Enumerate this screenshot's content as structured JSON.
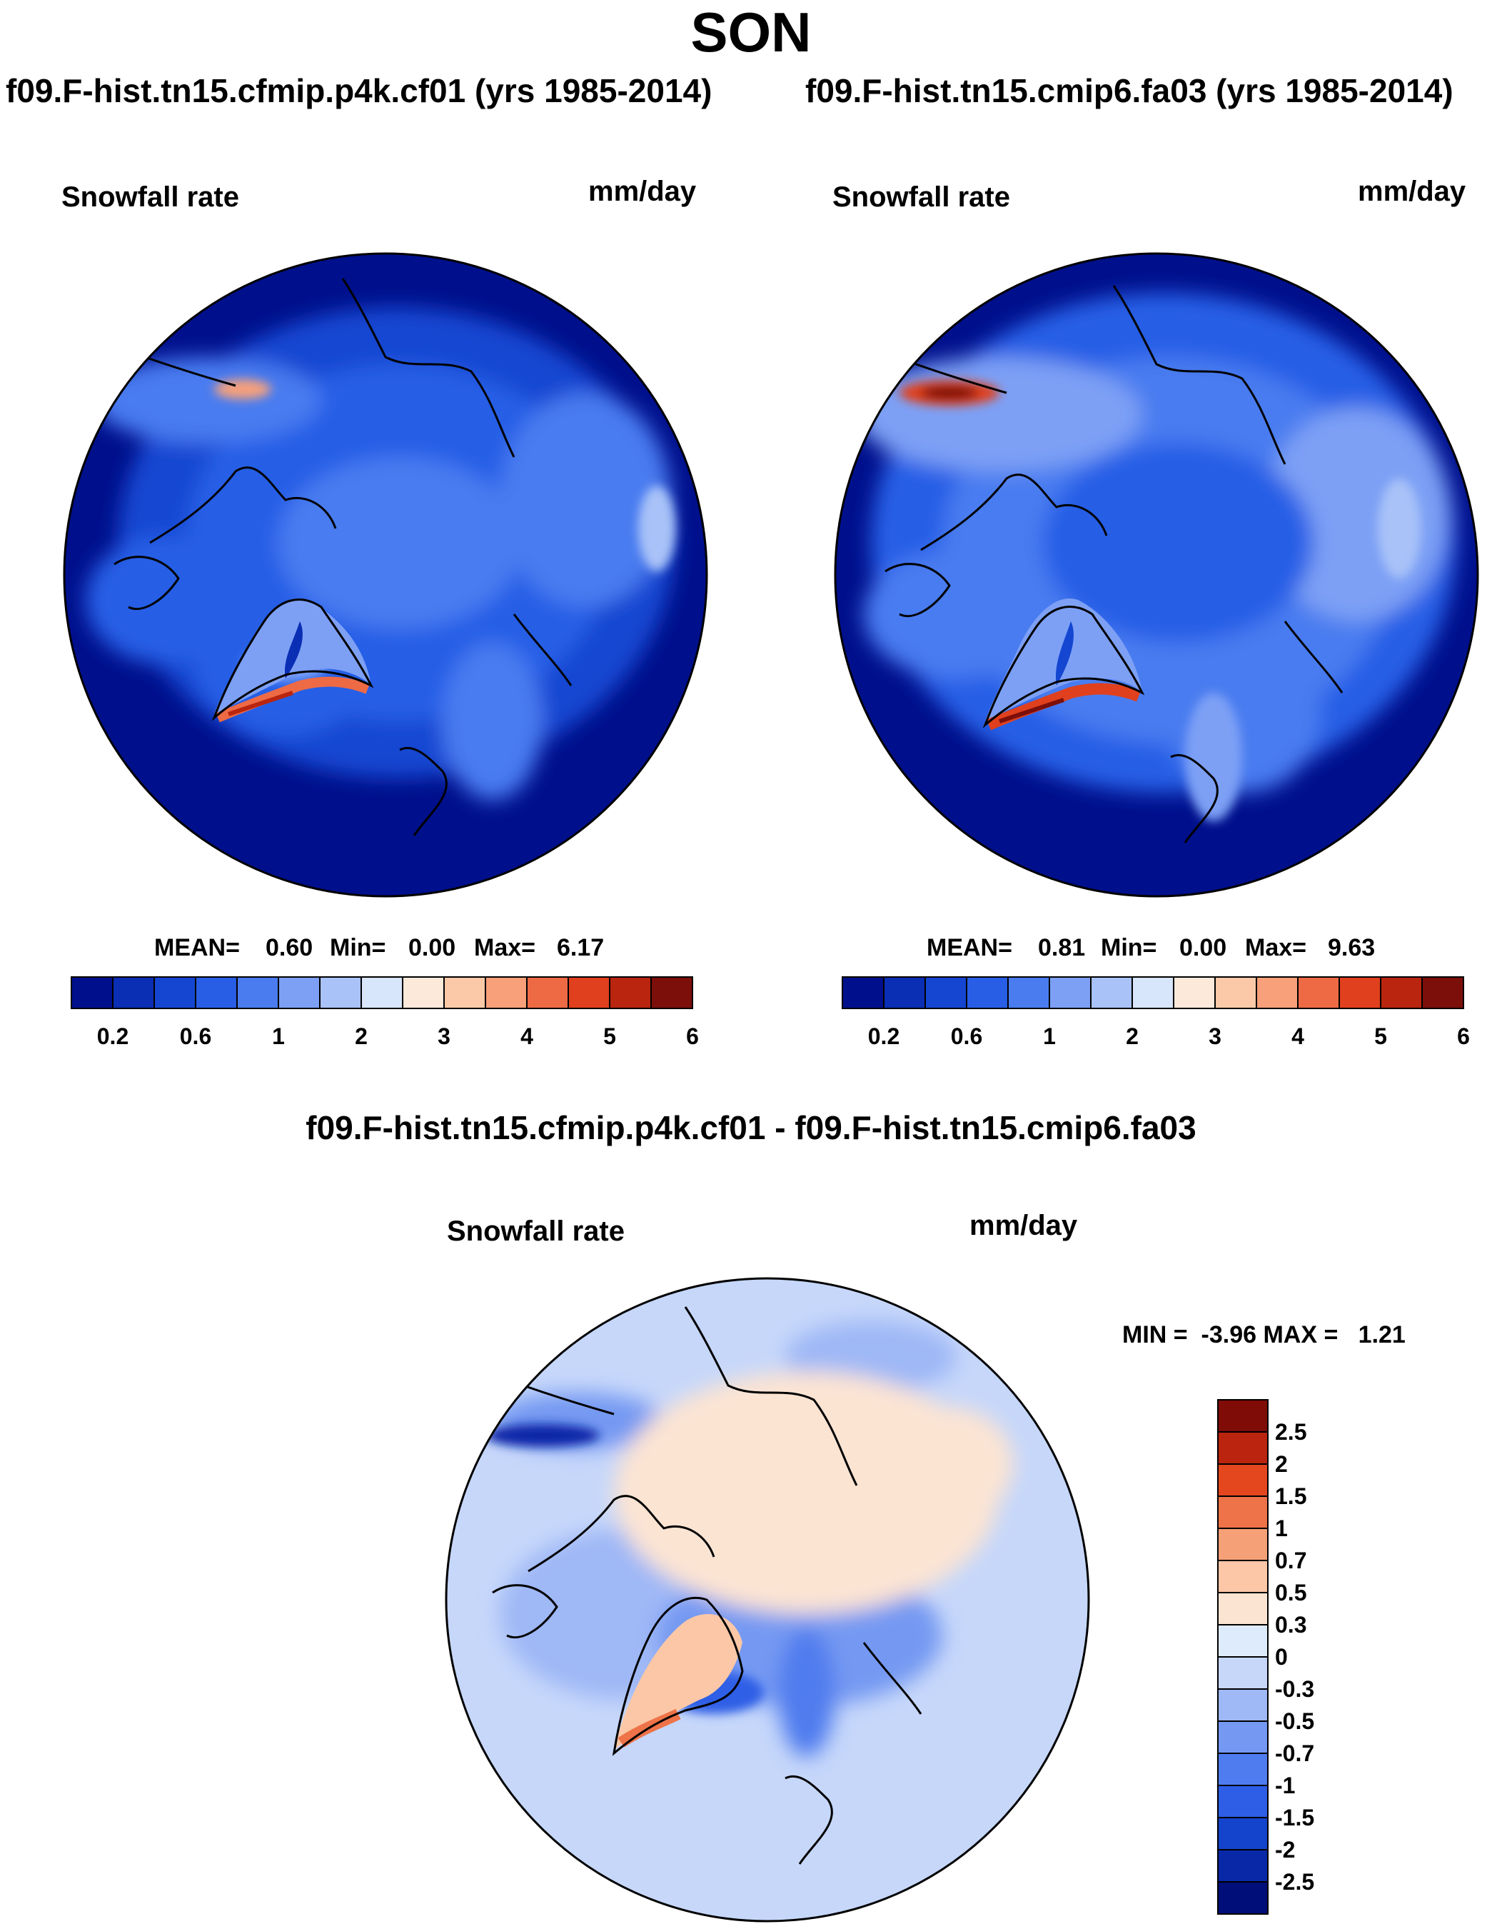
{
  "title": "SON",
  "colors": {
    "panel_scale": [
      "#00108c",
      "#0a2eb4",
      "#1446d2",
      "#285ee6",
      "#4a7cf0",
      "#7da0f5",
      "#a9c2f8",
      "#d8e6fb",
      "#fde9da",
      "#fbc9a8",
      "#f7a07a",
      "#ee6a45",
      "#e0401e",
      "#b9250e",
      "#7c0f0a"
    ],
    "diff_scale": [
      "#000e7a",
      "#0828a8",
      "#1544cc",
      "#2e5ee6",
      "#4f7cee",
      "#7599f2",
      "#9fb8f6",
      "#c6d7fa",
      "#deebfc",
      "#fce4d3",
      "#fbc7a6",
      "#f6a078",
      "#ee7348",
      "#e4461e",
      "#bb240e",
      "#7f0c06"
    ],
    "coastline": "#000000"
  },
  "panels": [
    {
      "title": "f09.F-hist.tn15.cfmip.p4k.cf01 (yrs 1985-2014)",
      "variable": "Snowfall rate",
      "units": "mm/day",
      "stats": {
        "mean_label": "MEAN=",
        "mean": "0.60",
        "min_label": "Min=",
        "min": "0.00",
        "max_label": "Max=",
        "max": "6.17"
      },
      "colorbar_ticks": [
        "0.2",
        "0.6",
        "1",
        "2",
        "3",
        "4",
        "5",
        "6"
      ]
    },
    {
      "title": "f09.F-hist.tn15.cmip6.fa03 (yrs 1985-2014)",
      "variable": "Snowfall rate",
      "units": "mm/day",
      "stats": {
        "mean_label": "MEAN=",
        "mean": "0.81",
        "min_label": "Min=",
        "min": "0.00",
        "max_label": "Max=",
        "max": "9.63"
      },
      "colorbar_ticks": [
        "0.2",
        "0.6",
        "1",
        "2",
        "3",
        "4",
        "5",
        "6"
      ]
    }
  ],
  "difference": {
    "title": "f09.F-hist.tn15.cfmip.p4k.cf01 - f09.F-hist.tn15.cmip6.fa03",
    "variable": "Snowfall rate",
    "units": "mm/day",
    "minmax": "MIN =  -3.96 MAX =   1.21",
    "colorbar_ticks": [
      "2.5",
      "2",
      "1.5",
      "1",
      "0.7",
      "0.5",
      "0.3",
      "0",
      "-0.3",
      "-0.5",
      "-0.7",
      "-1",
      "-1.5",
      "-2",
      "-2.5"
    ]
  },
  "chart_data": [
    {
      "type": "heatmap",
      "projection": "north polar stereographic",
      "title": "f09.F-hist.tn15.cfmip.p4k.cf01 (yrs 1985-2014)",
      "variable": "Snowfall rate",
      "units": "mm/day",
      "mean": 0.6,
      "min": 0.0,
      "max": 6.17,
      "levels": [
        0.2,
        0.4,
        0.6,
        0.8,
        1,
        1.5,
        2,
        2.5,
        3,
        3.5,
        4,
        4.5,
        5,
        5.5,
        6
      ]
    },
    {
      "type": "heatmap",
      "projection": "north polar stereographic",
      "title": "f09.F-hist.tn15.cmip6.fa03 (yrs 1985-2014)",
      "variable": "Snowfall rate",
      "units": "mm/day",
      "mean": 0.81,
      "min": 0.0,
      "max": 9.63,
      "levels": [
        0.2,
        0.4,
        0.6,
        0.8,
        1,
        1.5,
        2,
        2.5,
        3,
        3.5,
        4,
        4.5,
        5,
        5.5,
        6
      ]
    },
    {
      "type": "heatmap",
      "projection": "north polar stereographic",
      "title": "f09.F-hist.tn15.cfmip.p4k.cf01 - f09.F-hist.tn15.cmip6.fa03",
      "variable": "Snowfall rate",
      "units": "mm/day",
      "min": -3.96,
      "max": 1.21,
      "levels": [
        -2.5,
        -2,
        -1.5,
        -1,
        -0.7,
        -0.5,
        -0.3,
        0,
        0.3,
        0.5,
        0.7,
        1,
        1.5,
        2,
        2.5
      ]
    }
  ]
}
